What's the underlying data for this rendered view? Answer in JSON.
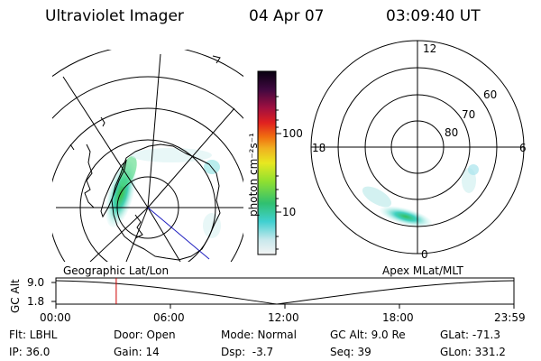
{
  "header": {
    "title": "Ultraviolet Imager",
    "date": "04 Apr 07",
    "time": "03:09:40 UT"
  },
  "colorbar": {
    "unit_label": "photon cm⁻²s⁻¹",
    "ticks": [
      "100",
      "10"
    ]
  },
  "geo_map": {
    "label": "Geographic Lat/Lon"
  },
  "polar": {
    "label": "Apex MLat/MLT",
    "lat_labels": [
      "60",
      "70",
      "80"
    ],
    "mlt_labels": [
      "12",
      "18",
      "6",
      "0"
    ]
  },
  "altitude": {
    "axis_title": "GC Alt",
    "ymax": "9.0",
    "ymin": "1.8",
    "time_ticks": [
      "00:00",
      "06:00",
      "12:00",
      "18:00",
      "23:59"
    ],
    "marker_time_hours": 3.16
  },
  "info": {
    "filter": "Flt: LBHL",
    "ip": "IP: 36.0",
    "door": "Door: Open",
    "gain": "Gain: 14",
    "mode": "Mode: Normal",
    "dsp": "Dsp:  -3.7",
    "gc_alt": "GC Alt: 9.0 Re",
    "seq": "Seq: 39",
    "glat": "GLat: -71.3",
    "glon": "GLon: 331.2"
  },
  "colors": {
    "marker": "#d00000",
    "track": "#2020c0"
  }
}
